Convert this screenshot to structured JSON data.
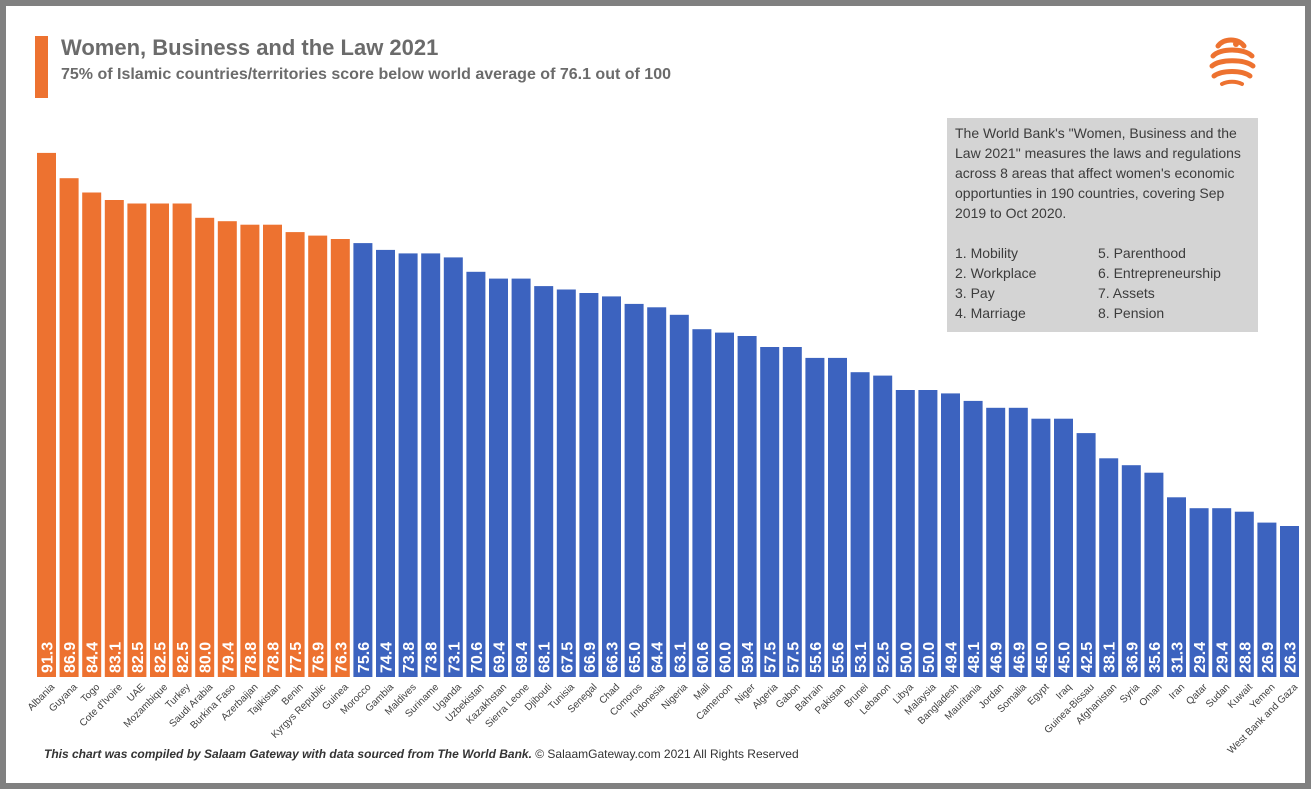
{
  "header": {
    "title": "Women, Business and the Law 2021",
    "subtitle": "75% of Islamic countries/territories score below world average of 76.1 out of 100"
  },
  "info_box": {
    "text": "The World Bank's \"Women, Business and the Law 2021\" measures the laws and regulations across 8 areas that affect women's economic opportunties in 190 countries, covering Sep 2019 to Oct 2020.",
    "areas": [
      "1. Mobility",
      "5. Parenthood",
      "2. Workplace",
      "6. Entrepreneurship",
      "3. Pay",
      "7. Assets",
      "4. Marriage",
      "8. Pension"
    ]
  },
  "footer": {
    "credit": "This chart was compiled by Salaam Gateway with data sourced from The World Bank.",
    "copyright": "© SalaamGateway.com 2021 All Rights Reserved"
  },
  "colors": {
    "above_average": "#ED7230",
    "below_average": "#3C63BF",
    "logo": "#ED7230"
  },
  "logo_icon": "salaam-gateway-logo-icon",
  "chart_data": {
    "type": "bar",
    "title": "Women, Business and the Law 2021",
    "subtitle": "75% of Islamic countries/territories score below world average of 76.1 out of 100",
    "xlabel": "",
    "ylabel": "",
    "ylim": [
      0,
      100
    ],
    "grid": false,
    "world_average": 76.1,
    "data_labels": "inside-bottom, rotated",
    "categories": [
      "Albania",
      "Guyana",
      "Togo",
      "Cote d'Ivoire",
      "UAE",
      "Mozambique",
      "Turkey",
      "Saudi Arabia",
      "Burkina Faso",
      "Azerbaijan",
      "Tajikistan",
      "Benin",
      "Kyrgys Republic",
      "Guinea",
      "Morocco",
      "Gambia",
      "Maldives",
      "Suriname",
      "Uganda",
      "Uzbekistan",
      "Kazakhstan",
      "Sierra Leone",
      "Djibouti",
      "Tunisia",
      "Senegal",
      "Chad",
      "Comoros",
      "Indonesia",
      "Nigeria",
      "Mali",
      "Cameroon",
      "Niger",
      "Algeria",
      "Gabon",
      "Bahrain",
      "Pakistan",
      "Brunei",
      "Lebanon",
      "Libya",
      "Malaysia",
      "Bangladesh",
      "Mauritania",
      "Jordan",
      "Somalia",
      "Egypt",
      "Iraq",
      "Guinea-Bissau",
      "Afghanistan",
      "Syria",
      "Oman",
      "Iran",
      "Qatar",
      "Sudan",
      "Kuwait",
      "Yemen",
      "West Bank and Gaza"
    ],
    "values": [
      91.3,
      86.9,
      84.4,
      83.1,
      82.5,
      82.5,
      82.5,
      80.0,
      79.4,
      78.8,
      78.8,
      77.5,
      76.9,
      76.3,
      75.6,
      74.4,
      73.8,
      73.8,
      73.1,
      70.6,
      69.4,
      69.4,
      68.1,
      67.5,
      66.9,
      66.3,
      65.0,
      64.4,
      63.1,
      60.6,
      60.0,
      59.4,
      57.5,
      57.5,
      55.6,
      55.6,
      53.1,
      52.5,
      50.0,
      50.0,
      49.4,
      48.1,
      46.9,
      46.9,
      45.0,
      45.0,
      42.5,
      38.1,
      36.9,
      35.6,
      31.3,
      29.4,
      29.4,
      28.8,
      26.9,
      26.3
    ],
    "value_labels": [
      "91.3",
      "86.9",
      "84.4",
      "83.1",
      "82.5",
      "82.5",
      "82.5",
      "80.0",
      "79.4",
      "78.8",
      "78.8",
      "77.5",
      "76.9",
      "76.3",
      "75.6",
      "74.4",
      "73.8",
      "73.8",
      "73.1",
      "70.6",
      "69.4",
      "69.4",
      "68.1",
      "67.5",
      "66.9",
      "66.3",
      "65.0",
      "64.4",
      "63.1",
      "60.6",
      "60.0",
      "59.4",
      "57.5",
      "57.5",
      "55.6",
      "55.6",
      "53.1",
      "52.5",
      "50.0",
      "50.0",
      "49.4",
      "48.1",
      "46.9",
      "46.9",
      "45.0",
      "45.0",
      "42.5",
      "38.1",
      "36.9",
      "35.6",
      "31.3",
      "29.4",
      "29.4",
      "28.8",
      "26.9",
      "26.3"
    ]
  }
}
